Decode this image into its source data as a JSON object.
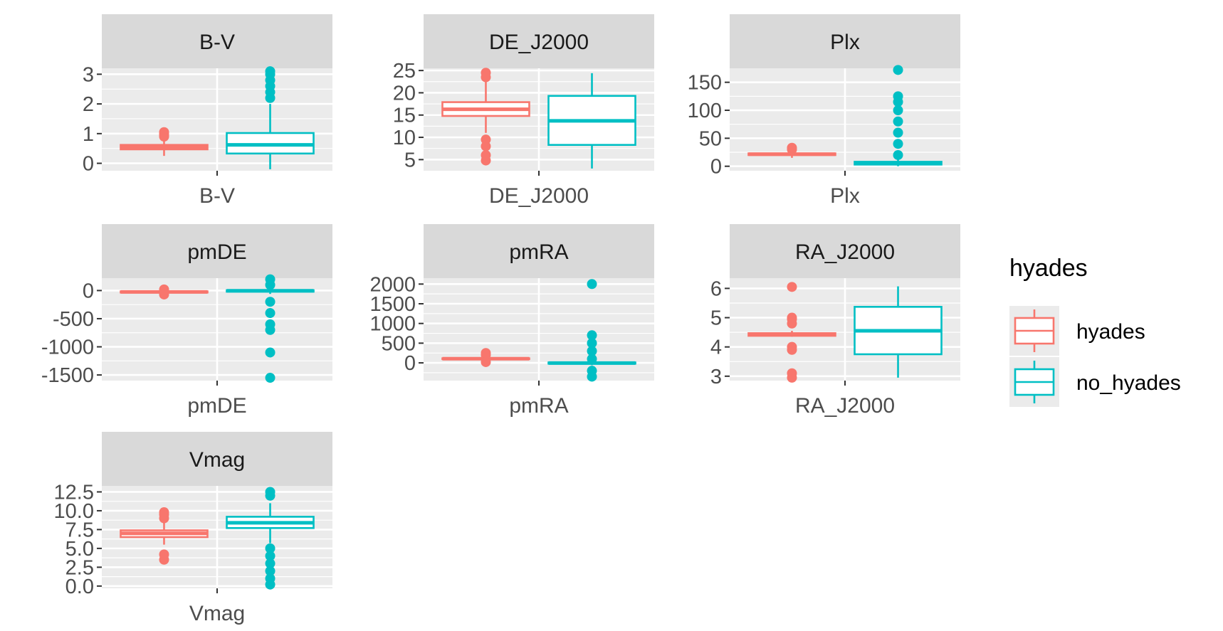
{
  "chart_data": [
    {
      "type": "box",
      "title": "B-V",
      "xlabel": "B-V",
      "yticks": [
        "0",
        "1",
        "2",
        "3"
      ],
      "ylim": [
        -0.25,
        3.2
      ],
      "series": [
        {
          "name": "hyades",
          "min": 0.25,
          "q1": 0.47,
          "median": 0.55,
          "q3": 0.62,
          "max": 0.8,
          "outliers": [
            0.9,
            0.95,
            1.0,
            1.05
          ]
        },
        {
          "name": "no_hyades",
          "min": -0.2,
          "q1": 0.33,
          "median": 0.62,
          "q3": 1.02,
          "max": 2.0,
          "outliers": [
            2.2,
            2.4,
            2.6,
            2.8,
            3.0,
            3.1
          ]
        }
      ]
    },
    {
      "type": "box",
      "title": "DE_J2000",
      "xlabel": "DE_J2000",
      "yticks": [
        "5",
        "10",
        "15",
        "20",
        "25"
      ],
      "ylim": [
        2.5,
        25.5
      ],
      "series": [
        {
          "name": "hyades",
          "min": 11.0,
          "q1": 14.8,
          "median": 16.3,
          "q3": 17.9,
          "max": 22.5,
          "outliers": [
            4.8,
            6.0,
            8.0,
            9.5,
            23.5,
            24.5
          ]
        },
        {
          "name": "no_hyades",
          "min": 3.0,
          "q1": 8.3,
          "median": 13.7,
          "q3": 19.3,
          "max": 24.4,
          "outliers": []
        }
      ]
    },
    {
      "type": "box",
      "title": "Plx",
      "xlabel": "Plx",
      "yticks": [
        "0",
        "50",
        "100",
        "150"
      ],
      "ylim": [
        -8,
        175
      ],
      "series": [
        {
          "name": "hyades",
          "min": 15,
          "q1": 20,
          "median": 21.5,
          "q3": 23,
          "max": 28,
          "outliers": [
            30,
            33
          ]
        },
        {
          "name": "no_hyades",
          "min": 0,
          "q1": 3,
          "median": 5,
          "q3": 8,
          "max": 15,
          "outliers": [
            20,
            40,
            60,
            80,
            100,
            115,
            125,
            172
          ]
        }
      ]
    },
    {
      "type": "box",
      "title": "pmDE",
      "xlabel": "pmDE",
      "yticks": [
        "0",
        "-500",
        "-1000",
        "-1500"
      ],
      "ylim": [
        -1600,
        220
      ],
      "series": [
        {
          "name": "hyades",
          "min": -60,
          "q1": -35,
          "median": -25,
          "q3": -15,
          "max": 5,
          "outliers": [
            20,
            -70
          ]
        },
        {
          "name": "no_hyades",
          "min": -60,
          "q1": -20,
          "median": -5,
          "q3": 5,
          "max": 40,
          "outliers": [
            200,
            100,
            -200,
            -400,
            -600,
            -700,
            -1100,
            -1550
          ]
        }
      ]
    },
    {
      "type": "box",
      "title": "pmRA",
      "xlabel": "pmRA",
      "yticks": [
        "0",
        "500",
        "1000",
        "1500",
        "2000"
      ],
      "ylim": [
        -450,
        2150
      ],
      "series": [
        {
          "name": "hyades",
          "min": 60,
          "q1": 95,
          "median": 105,
          "q3": 115,
          "max": 150,
          "outliers": [
            200,
            250,
            20
          ]
        },
        {
          "name": "no_hyades",
          "min": -60,
          "q1": -20,
          "median": -5,
          "q3": 10,
          "max": 60,
          "outliers": [
            100,
            300,
            500,
            700,
            -200,
            -350,
            2000
          ]
        }
      ]
    },
    {
      "type": "box",
      "title": "RA_J2000",
      "xlabel": "RA_J2000",
      "yticks": [
        "3",
        "4",
        "5",
        "6"
      ],
      "ylim": [
        2.85,
        6.35
      ],
      "series": [
        {
          "name": "hyades",
          "min": 4.35,
          "q1": 4.38,
          "median": 4.42,
          "q3": 4.47,
          "max": 4.55,
          "outliers": [
            2.95,
            3.1,
            3.9,
            4.0,
            4.8,
            4.95,
            5.0,
            6.05
          ]
        },
        {
          "name": "no_hyades",
          "min": 2.95,
          "q1": 3.75,
          "median": 4.55,
          "q3": 5.37,
          "max": 6.07,
          "outliers": []
        }
      ]
    },
    {
      "type": "box",
      "title": "Vmag",
      "xlabel": "Vmag",
      "yticks": [
        "0.0",
        "2.5",
        "5.0",
        "7.5",
        "10.0",
        "12.5"
      ],
      "ylim": [
        -0.3,
        13.3
      ],
      "series": [
        {
          "name": "hyades",
          "min": 5.5,
          "q1": 6.5,
          "median": 7.0,
          "q3": 7.4,
          "max": 8.5,
          "outliers": [
            3.5,
            4.2,
            9.0,
            9.5,
            9.8
          ]
        },
        {
          "name": "no_hyades",
          "min": 5.7,
          "q1": 7.7,
          "median": 8.4,
          "q3": 9.2,
          "max": 11.0,
          "outliers": [
            5.0,
            4.0,
            3.0,
            2.0,
            1.0,
            0.2,
            12.0,
            12.5
          ]
        }
      ]
    }
  ],
  "legend": {
    "title": "hyades",
    "placement": "right",
    "items": [
      {
        "label": "hyades",
        "color": "#F8766D"
      },
      {
        "label": "no_hyades",
        "color": "#00BFC4"
      }
    ]
  },
  "colors": {
    "panel_bg": "#EBEBEB",
    "strip_bg": "#D9D9D9",
    "grid": "#FFFFFF",
    "text": "#4D4D4D",
    "title_text": "#1A1A1A"
  }
}
